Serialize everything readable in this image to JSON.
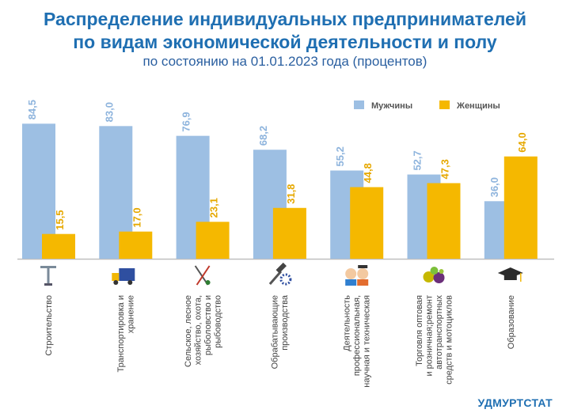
{
  "title_line1": "Распределение индивидуальных предпринимателей",
  "title_line2": "по видам экономической деятельности и полу",
  "subtitle": "по состоянию на 01.01.2023 года (процентов)",
  "footer": "УДМУРТСТАТ",
  "colors": {
    "men": "#9dbfe3",
    "women": "#f5b800",
    "men_label": "#8eb4dd",
    "women_label": "#e6a800",
    "axis": "#bfbfbf"
  },
  "chart_data": {
    "type": "bar",
    "categories": [
      [
        "Строительство"
      ],
      [
        "Транспортировка и",
        "хранение"
      ],
      [
        "Сельское, лесное",
        "хозяйство, охота,",
        "рыболовство и",
        "рыбоводство"
      ],
      [
        "Обрабатывающие",
        "производства"
      ],
      [
        "Деятельность",
        "профессиональная,",
        "научная и техническая"
      ],
      [
        "Торговля оптовая",
        "и розничная;ремонт",
        "автотранспортных",
        "средств и мотоциклов"
      ],
      [
        "Образование"
      ]
    ],
    "icons": [
      "crane-icon",
      "truck-icon",
      "fishing-tools-icon",
      "hammer-gear-icon",
      "people-icon",
      "fruit-icon",
      "graduation-cap-icon"
    ],
    "series": [
      {
        "name": "Мужчины",
        "values": [
          84.5,
          83.0,
          76.9,
          68.2,
          55.2,
          52.7,
          36.0
        ]
      },
      {
        "name": "Женщины",
        "values": [
          15.5,
          17.0,
          23.1,
          31.8,
          44.8,
          47.3,
          64.0
        ]
      }
    ],
    "value_labels": [
      [
        "84,5",
        "83,0",
        "76,9",
        "68,2",
        "55,2",
        "52,7",
        "36,0"
      ],
      [
        "15,5",
        "17,0",
        "23,1",
        "31,8",
        "44,8",
        "47,3",
        "64,0"
      ]
    ],
    "ylim": [
      0,
      100
    ],
    "legend_position": "top-right",
    "grid": false
  }
}
